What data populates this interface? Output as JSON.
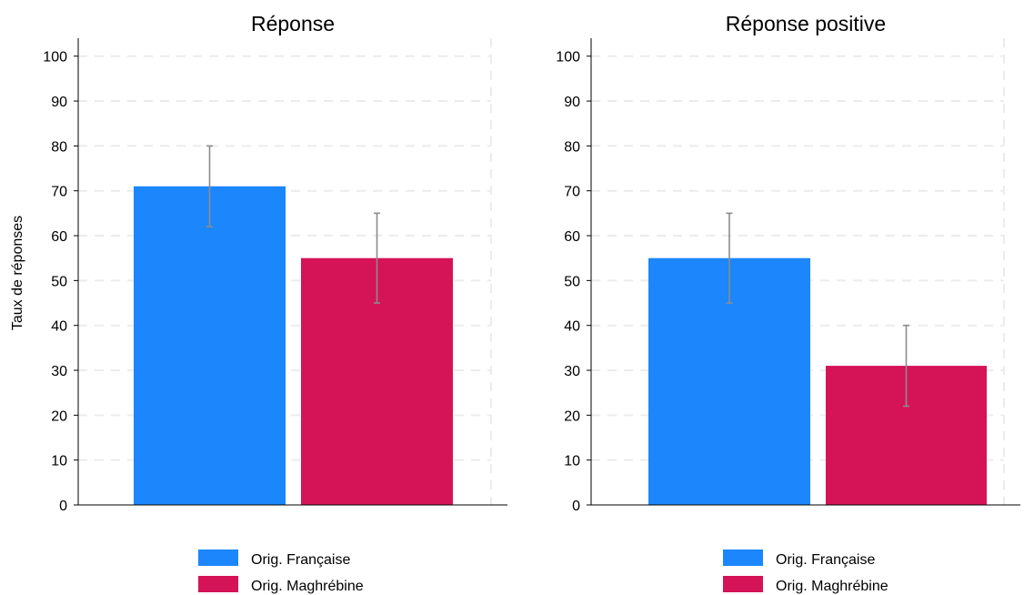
{
  "ylabel": "Taux de réponses",
  "colors": {
    "francaise": "#1c86fc",
    "maghrebine": "#d51357"
  },
  "legend": [
    {
      "label": "Orig. Française",
      "color": "#1c86fc"
    },
    {
      "label": "Orig. Maghrébine",
      "color": "#d51357"
    }
  ],
  "chart_data": [
    {
      "type": "bar",
      "title": "Réponse",
      "categories": [
        "Orig. Française",
        "Orig. Maghrébine"
      ],
      "values": [
        71,
        55
      ],
      "error_low": [
        62,
        45
      ],
      "error_high": [
        80,
        65
      ],
      "ylim": [
        0,
        104
      ],
      "yticks": [
        0,
        10,
        20,
        30,
        40,
        50,
        60,
        70,
        80,
        90,
        100
      ],
      "grid": true,
      "legend_position": "bottom"
    },
    {
      "type": "bar",
      "title": "Réponse positive",
      "categories": [
        "Orig. Française",
        "Orig. Maghrébine"
      ],
      "values": [
        55,
        31
      ],
      "error_low": [
        45,
        22
      ],
      "error_high": [
        65,
        40
      ],
      "ylim": [
        0,
        104
      ],
      "yticks": [
        0,
        10,
        20,
        30,
        40,
        50,
        60,
        70,
        80,
        90,
        100
      ],
      "grid": true,
      "legend_position": "bottom"
    }
  ]
}
